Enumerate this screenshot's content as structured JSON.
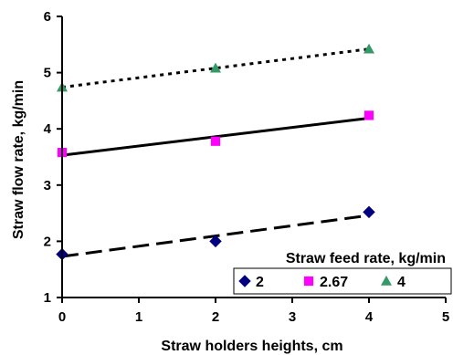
{
  "chart_data": {
    "type": "scatter",
    "xlabel": "Straw holders heights, cm",
    "ylabel": "Straw flow rate, kg/min",
    "xlim": [
      0,
      5
    ],
    "ylim": [
      1,
      6
    ],
    "xticks": [
      0,
      1,
      2,
      3,
      4,
      5
    ],
    "yticks": [
      1,
      2,
      3,
      4,
      5,
      6
    ],
    "grid": false,
    "legend": {
      "title": "Straw feed rate, kg/min",
      "placement": "bottom-right"
    },
    "series": [
      {
        "name": "2",
        "marker": "diamond",
        "color": "#000080",
        "line_style": "long-dash",
        "x": [
          0,
          2,
          4
        ],
        "y": [
          1.77,
          2.0,
          2.52
        ],
        "trend": [
          [
            0,
            1.73
          ],
          [
            4,
            2.46
          ]
        ]
      },
      {
        "name": "2.67",
        "marker": "square",
        "color": "#ff00ff",
        "line_style": "solid",
        "x": [
          0,
          2,
          4
        ],
        "y": [
          3.58,
          3.78,
          4.24
        ],
        "trend": [
          [
            0,
            3.53
          ],
          [
            4,
            4.19
          ]
        ]
      },
      {
        "name": "4",
        "marker": "triangle",
        "color": "#339966",
        "line_style": "dotted",
        "x": [
          0,
          2,
          4
        ],
        "y": [
          4.74,
          5.08,
          5.42
        ],
        "trend": [
          [
            0,
            4.74
          ],
          [
            4,
            5.42
          ]
        ]
      }
    ]
  }
}
